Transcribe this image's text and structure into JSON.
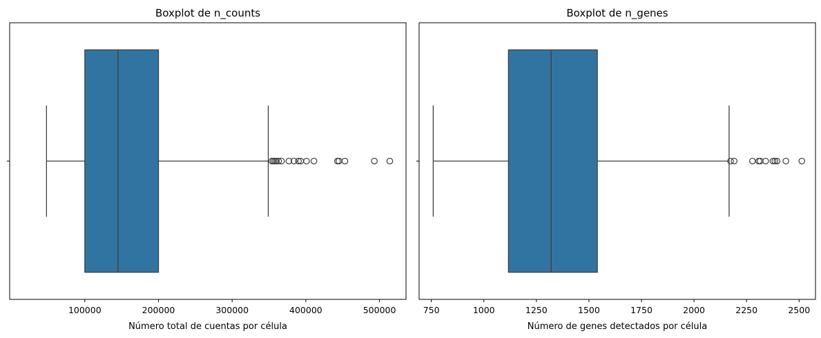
{
  "colors": {
    "box": "#3274a1",
    "line": "#3d3d3d",
    "frame": "#000000"
  },
  "chart_data": [
    {
      "type": "boxplot",
      "title": "Boxplot de n_counts",
      "xlabel": "Número total de cuentas por célula",
      "ylabel": "",
      "xlim": [
        -2000,
        536000
      ],
      "xticks": [
        100000,
        200000,
        300000,
        400000,
        500000
      ],
      "xtick_labels": [
        "100000",
        "200000",
        "300000",
        "400000",
        "500000"
      ],
      "whisker_low": 48000,
      "q1": 100000,
      "median": 145000,
      "q3": 200000,
      "whisker_high": 349000,
      "outliers": [
        354000,
        356000,
        358000,
        360000,
        363000,
        367000,
        377000,
        384000,
        390000,
        393000,
        401000,
        411000,
        443000,
        445000,
        453000,
        493000,
        514000
      ]
    },
    {
      "type": "boxplot",
      "title": "Boxplot de n_genes",
      "xlabel": "Número de genes detectados por célula",
      "ylabel": "",
      "xlim": [
        692,
        2578
      ],
      "xticks": [
        750,
        1000,
        1250,
        1500,
        1750,
        2000,
        2250,
        2500
      ],
      "xtick_labels": [
        "750",
        "1000",
        "1250",
        "1500",
        "1750",
        "2000",
        "2250",
        "2500"
      ],
      "whisker_low": 759,
      "q1": 1117,
      "median": 1320,
      "q3": 1540,
      "whisker_high": 2167,
      "outliers": [
        2174,
        2191,
        2278,
        2308,
        2315,
        2341,
        2376,
        2385,
        2395,
        2437,
        2513
      ]
    }
  ]
}
